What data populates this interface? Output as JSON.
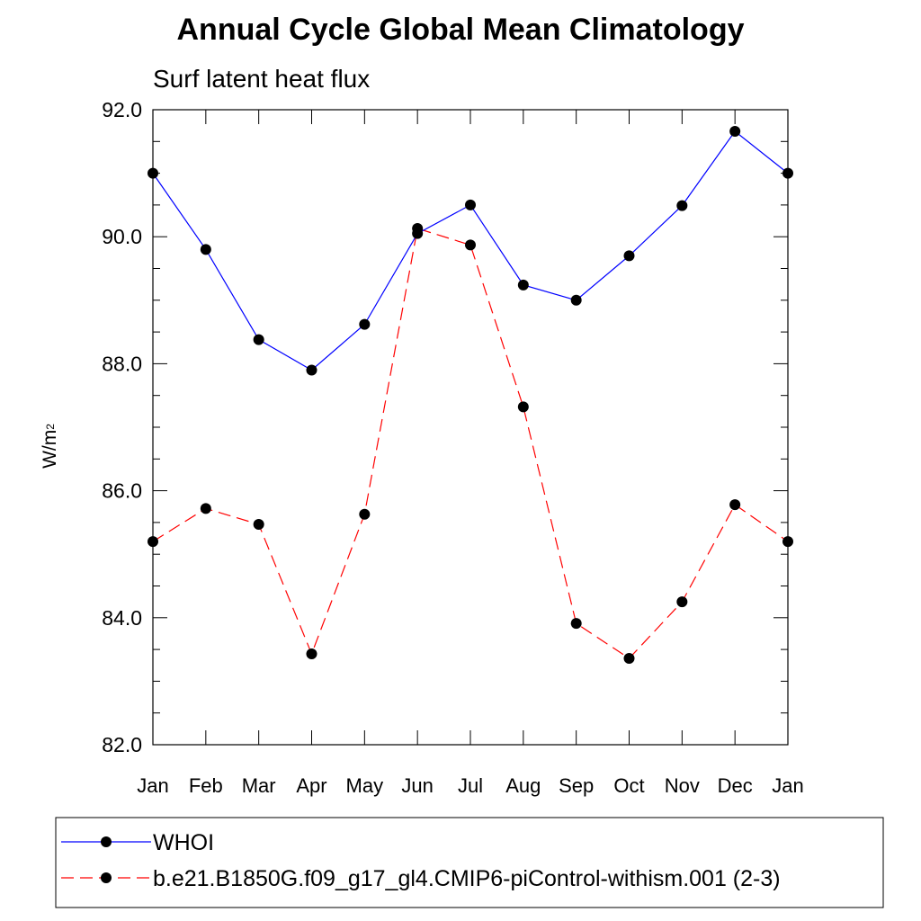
{
  "chart_data": {
    "type": "line",
    "title": "Annual Cycle Global Mean Climatology",
    "subtitle": "Surf latent heat flux",
    "xlabel": "",
    "ylabel": "W/m",
    "ylabel_sup": "2",
    "categories": [
      "Jan",
      "Feb",
      "Mar",
      "Apr",
      "May",
      "Jun",
      "Jul",
      "Aug",
      "Sep",
      "Oct",
      "Nov",
      "Dec",
      "Jan"
    ],
    "ylim": [
      82.0,
      92.0
    ],
    "yticks": [
      "82.0",
      "84.0",
      "86.0",
      "88.0",
      "90.0",
      "92.0"
    ],
    "ytick_values": [
      82,
      84,
      86,
      88,
      90,
      92
    ],
    "series": [
      {
        "name": "WHOI",
        "color": "#0000ff",
        "dashed": false,
        "values": [
          91.0,
          89.8,
          88.38,
          87.9,
          88.62,
          90.05,
          90.5,
          89.24,
          89.0,
          89.7,
          90.49,
          91.66,
          91.0
        ]
      },
      {
        "name": "b.e21.B1850G.f09_g17_gl4.CMIP6-piControl-withism.001 (2-3)",
        "color": "#ff0000",
        "dashed": true,
        "values": [
          85.2,
          85.72,
          85.47,
          83.43,
          85.63,
          90.13,
          89.87,
          87.32,
          83.91,
          83.36,
          84.25,
          85.78,
          85.2
        ]
      }
    ]
  }
}
